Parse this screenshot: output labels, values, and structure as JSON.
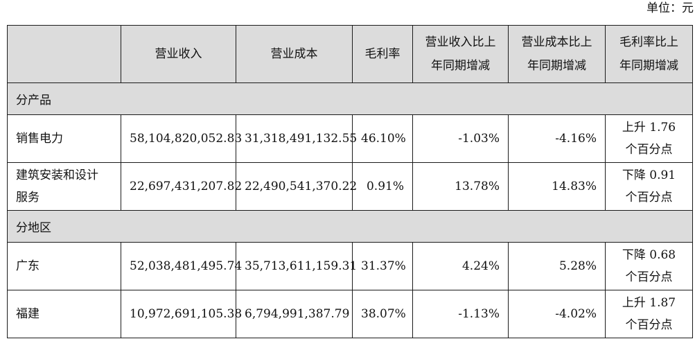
{
  "unit_label": "单位：元",
  "header": {
    "blank": "",
    "col1": "营业收入",
    "col2": "营业成本",
    "col3": "毛利率",
    "col4_line1": "营业收入比上",
    "col4_line2": "年同期增减",
    "col5_line1": "营业成本比上",
    "col5_line2": "年同期增减",
    "col6_line1": "毛利率比上",
    "col6_line2": "年同期增减"
  },
  "sections": {
    "product": {
      "title": "分产品",
      "rows": [
        {
          "name_line1": "销售电力",
          "name_line2": "",
          "revenue": "58,104,820,052.83",
          "cost": "31,318,491,132.55",
          "margin": "46.10%",
          "rev_change": "-1.03%",
          "cost_change": "-4.16%",
          "margin_change_line1": "上升 1.76",
          "margin_change_line2": "个百分点"
        },
        {
          "name_line1": "建筑安装和设计",
          "name_line2": "服务",
          "revenue": "22,697,431,207.82",
          "cost": "22,490,541,370.22",
          "margin": "0.91%",
          "rev_change": "13.78%",
          "cost_change": "14.83%",
          "margin_change_line1": "下降 0.91",
          "margin_change_line2": "个百分点"
        }
      ]
    },
    "region": {
      "title": "分地区",
      "rows": [
        {
          "name_line1": "广东",
          "name_line2": "",
          "revenue": "52,038,481,495.74",
          "cost": "35,713,611,159.31",
          "margin": "31.37%",
          "rev_change": "4.24%",
          "cost_change": "5.28%",
          "margin_change_line1": "下降 0.68",
          "margin_change_line2": "个百分点"
        },
        {
          "name_line1": "福建",
          "name_line2": "",
          "revenue": "10,972,691,105.38",
          "cost": "6,794,991,387.79",
          "margin": "38.07%",
          "rev_change": "-1.13%",
          "cost_change": "-4.02%",
          "margin_change_line1": "上升 1.87",
          "margin_change_line2": "个百分点"
        }
      ]
    }
  }
}
